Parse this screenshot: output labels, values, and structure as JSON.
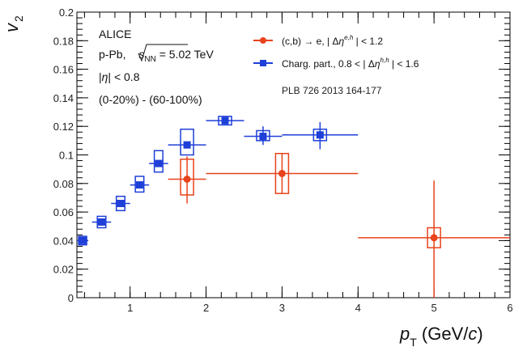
{
  "chart_data": {
    "type": "scatter",
    "xlabel": "p_T (GeV/c)",
    "xlabel_parts": {
      "p": "p",
      "sub": "T",
      "unit_open": " (GeV/",
      "c": "c",
      "unit_close": ")"
    },
    "ylabel": "v_2",
    "ylabel_parts": {
      "v": "v",
      "sub": "2"
    },
    "xlim": [
      0.3,
      6
    ],
    "ylim": [
      0,
      0.2
    ],
    "x_ticks": [
      {
        "value": 1,
        "label": "1"
      },
      {
        "value": 2,
        "label": "2"
      },
      {
        "value": 3,
        "label": "3"
      },
      {
        "value": 4,
        "label": "4"
      },
      {
        "value": 5,
        "label": "5"
      },
      {
        "value": 6,
        "label": "6"
      }
    ],
    "y_ticks": [
      {
        "value": 0,
        "label": "0"
      },
      {
        "value": 0.02,
        "label": "0.02"
      },
      {
        "value": 0.04,
        "label": "0.04"
      },
      {
        "value": 0.06,
        "label": "0.06"
      },
      {
        "value": 0.08,
        "label": "0.08"
      },
      {
        "value": 0.1,
        "label": "0.1"
      },
      {
        "value": 0.12,
        "label": "0.12"
      },
      {
        "value": 0.14,
        "label": "0.14"
      },
      {
        "value": 0.16,
        "label": "0.16"
      },
      {
        "value": 0.18,
        "label": "0.18"
      },
      {
        "value": 0.2,
        "label": "0.2"
      }
    ],
    "grid": false,
    "legend_placement": "top-right",
    "annotations": {
      "experiment": "ALICE",
      "system_prefix": "p-Pb, ",
      "energy_symbol": "s",
      "energy_sub": "NN",
      "energy_value": " = 5.02 TeV",
      "eta_prefix": "|",
      "eta_symbol": "η",
      "eta_suffix": "| < 0.8",
      "centrality": "(0-20%) - (60-100%)",
      "reference": "PLB 726 2013 164-177"
    },
    "series": [
      {
        "name": "(c,b) → e, | Δη^{e,h} | < 1.2",
        "legend_parts": {
          "pre": "(c,b) → e, | Δ",
          "eta": "η",
          "sup": "e,h",
          "post": " | < 1.2"
        },
        "color": "#e8431c",
        "marker": "circle",
        "points": [
          {
            "x": 1.75,
            "y": 0.083,
            "x_err": [
              1.5,
              2.0
            ],
            "y_err": [
              0.066,
              0.099
            ],
            "sys": [
              0.072,
              0.097
            ]
          },
          {
            "x": 3.0,
            "y": 0.087,
            "x_err": [
              2.0,
              4.0
            ],
            "y_err": [
              0.073,
              0.101
            ],
            "sys": [
              0.073,
              0.101
            ]
          },
          {
            "x": 5.0,
            "y": 0.042,
            "x_err": [
              4.0,
              6.0
            ],
            "y_err": [
              0.0,
              0.082
            ],
            "sys": [
              0.035,
              0.049
            ]
          }
        ]
      },
      {
        "name": "Charg. part., 0.8 < | Δη^{h,h} | < 1.6",
        "legend_parts": {
          "pre": "Charg. part., 0.8 < | Δ",
          "eta": "η",
          "sup": "h,h",
          "post": " | < 1.6"
        },
        "color": "#1e3fd8",
        "marker": "square",
        "points": [
          {
            "x": 0.375,
            "y": 0.04,
            "x_err": [
              0.3,
              0.45
            ],
            "y_err": [
              0.038,
              0.042
            ],
            "sys": [
              0.037,
              0.043
            ]
          },
          {
            "x": 0.625,
            "y": 0.053,
            "x_err": [
              0.5,
              0.75
            ],
            "y_err": [
              0.051,
              0.055
            ],
            "sys": [
              0.049,
              0.057
            ]
          },
          {
            "x": 0.875,
            "y": 0.066,
            "x_err": [
              0.75,
              1.0
            ],
            "y_err": [
              0.064,
              0.068
            ],
            "sys": [
              0.061,
              0.071
            ]
          },
          {
            "x": 1.125,
            "y": 0.079,
            "x_err": [
              1.0,
              1.25
            ],
            "y_err": [
              0.077,
              0.081
            ],
            "sys": [
              0.074,
              0.085
            ]
          },
          {
            "x": 1.375,
            "y": 0.094,
            "x_err": [
              1.25,
              1.5
            ],
            "y_err": [
              0.092,
              0.096
            ],
            "sys": [
              0.088,
              0.103
            ]
          },
          {
            "x": 1.75,
            "y": 0.107,
            "x_err": [
              1.5,
              2.0
            ],
            "y_err": [
              0.105,
              0.109
            ],
            "sys": [
              0.1,
              0.118
            ]
          },
          {
            "x": 2.25,
            "y": 0.124,
            "x_err": [
              2.0,
              2.5
            ],
            "y_err": [
              0.122,
              0.126
            ],
            "sys": [
              0.121,
              0.127
            ]
          },
          {
            "x": 2.75,
            "y": 0.113,
            "x_err": [
              2.5,
              3.0
            ],
            "y_err": [
              0.107,
              0.12
            ],
            "sys": [
              0.11,
              0.117
            ]
          },
          {
            "x": 3.5,
            "y": 0.114,
            "x_err": [
              3.0,
              4.0
            ],
            "y_err": [
              0.104,
              0.123
            ],
            "sys": [
              0.11,
              0.118
            ]
          }
        ]
      }
    ]
  }
}
